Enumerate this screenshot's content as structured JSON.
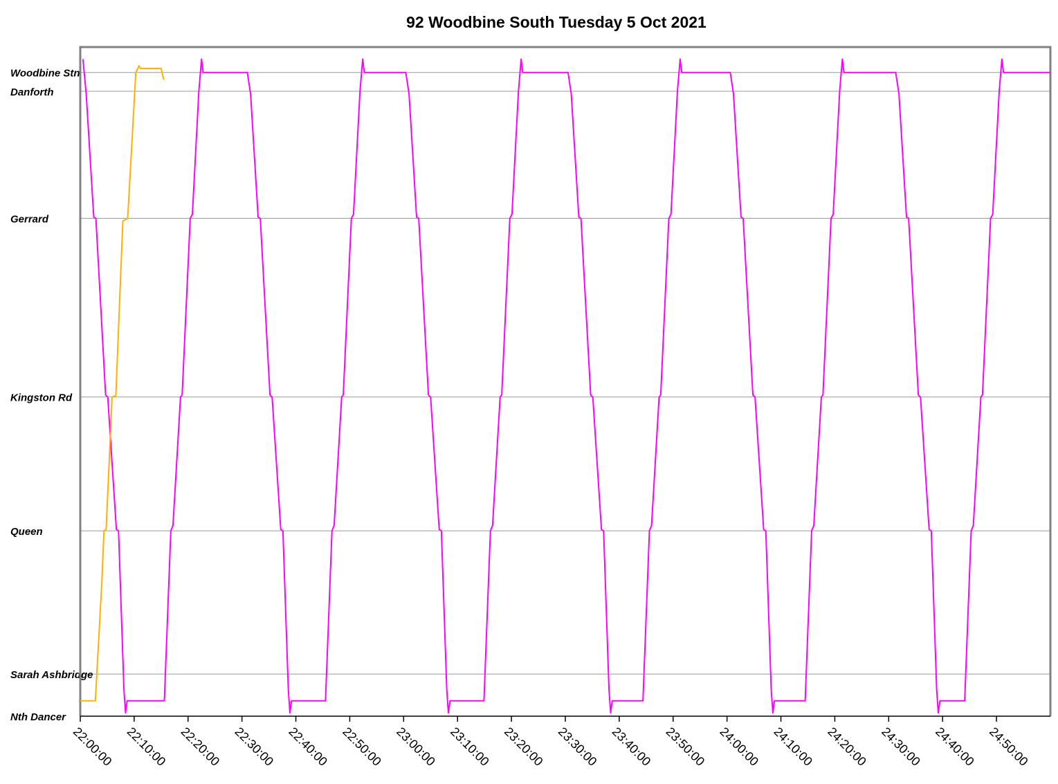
{
  "chart_data": {
    "type": "line",
    "title": "92 Woodbine South Tuesday 5 Oct 2021",
    "xlim": [
      1320,
      1500
    ],
    "ylim": [
      0,
      100
    ],
    "xticks": [
      {
        "value": 1320,
        "label": "22:00:00"
      },
      {
        "value": 1330,
        "label": "22:10:00"
      },
      {
        "value": 1340,
        "label": "22:20:00"
      },
      {
        "value": 1350,
        "label": "22:30:00"
      },
      {
        "value": 1360,
        "label": "22:40:00"
      },
      {
        "value": 1370,
        "label": "22:50:00"
      },
      {
        "value": 1380,
        "label": "23:00:00"
      },
      {
        "value": 1390,
        "label": "23:10:00"
      },
      {
        "value": 1400,
        "label": "23:20:00"
      },
      {
        "value": 1410,
        "label": "23:30:00"
      },
      {
        "value": 1420,
        "label": "23:40:00"
      },
      {
        "value": 1430,
        "label": "23:50:00"
      },
      {
        "value": 1440,
        "label": "24:00:00"
      },
      {
        "value": 1450,
        "label": "24:10:00"
      },
      {
        "value": 1460,
        "label": "24:20:00"
      },
      {
        "value": 1470,
        "label": "24:30:00"
      },
      {
        "value": 1480,
        "label": "24:40:00"
      },
      {
        "value": 1490,
        "label": "24:50:00"
      }
    ],
    "yticks": [
      {
        "value": 0,
        "label": "Nth Dancer"
      },
      {
        "value": 6.3,
        "label": "Sarah Ashbridge"
      },
      {
        "value": 27.7,
        "label": "Queen"
      },
      {
        "value": 47.7,
        "label": "Kingston Rd"
      },
      {
        "value": 74.4,
        "label": "Gerrard"
      },
      {
        "value": 93.4,
        "label": "Danforth"
      },
      {
        "value": 96.2,
        "label": "Woodbine Stn"
      }
    ],
    "grid": true,
    "series": [
      {
        "color": "#ff00ff",
        "x": [
          1320.5,
          1321.1,
          1322.5,
          1322.9,
          1324.7,
          1325.1,
          1326.7,
          1327.1,
          1328.1,
          1328.4,
          1328.7,
          1335.6,
          1336.8,
          1337.2,
          1338.6,
          1338.9,
          1340.4,
          1340.8,
          1342.0,
          1342.5,
          1342.8,
          1351.0,
          1351.6,
          1353.0,
          1353.4,
          1355.2,
          1355.6,
          1357.2,
          1357.6,
          1358.6,
          1358.9,
          1359.2,
          1365.5,
          1366.7,
          1367.1,
          1368.5,
          1368.8,
          1370.3,
          1370.7,
          1371.9,
          1372.4,
          1372.7,
          1380.4,
          1381.0,
          1382.4,
          1382.8,
          1384.6,
          1385.0,
          1386.6,
          1387.0,
          1388.0,
          1388.3,
          1388.6,
          1394.9,
          1396.1,
          1396.5,
          1397.9,
          1398.2,
          1399.7,
          1400.1,
          1401.3,
          1401.8,
          1402.1,
          1410.5,
          1411.1,
          1412.5,
          1412.9,
          1414.7,
          1415.1,
          1416.7,
          1417.1,
          1418.1,
          1418.4,
          1418.7,
          1424.4,
          1425.6,
          1426.0,
          1427.4,
          1427.7,
          1429.2,
          1429.6,
          1430.8,
          1431.3,
          1431.6,
          1440.6,
          1441.2,
          1442.6,
          1443.0,
          1444.8,
          1445.2,
          1446.8,
          1447.2,
          1448.2,
          1448.5,
          1448.8,
          1454.5,
          1455.7,
          1456.1,
          1457.5,
          1457.8,
          1459.3,
          1459.7,
          1460.9,
          1461.4,
          1461.7,
          1471.3,
          1471.9,
          1473.3,
          1473.7,
          1475.5,
          1475.9,
          1477.5,
          1477.9,
          1478.9,
          1479.2,
          1479.5,
          1484.1,
          1485.3,
          1485.7,
          1487.1,
          1487.4,
          1488.9,
          1489.3,
          1490.5,
          1491.0,
          1491.3,
          1500
        ],
        "values": [
          98.2,
          93,
          74.6,
          74.4,
          48,
          47.7,
          27.9,
          27.7,
          4,
          0.5,
          2.3,
          2.3,
          27.7,
          28.5,
          47.7,
          48,
          74.4,
          75,
          93.4,
          98.2,
          96.2,
          96.2,
          93,
          74.6,
          74.4,
          48,
          47.7,
          27.9,
          27.7,
          4,
          0.5,
          2.3,
          2.3,
          27.7,
          28.5,
          47.7,
          48,
          74.4,
          75,
          93.4,
          98.2,
          96.2,
          96.2,
          93,
          74.6,
          74.4,
          48,
          47.7,
          27.9,
          27.7,
          4,
          0.5,
          2.3,
          2.3,
          27.7,
          28.5,
          47.7,
          48,
          74.4,
          75,
          93.4,
          98.2,
          96.2,
          96.2,
          93,
          74.6,
          74.4,
          48,
          47.7,
          27.9,
          27.7,
          4,
          0.5,
          2.3,
          2.3,
          27.7,
          28.5,
          47.7,
          48,
          74.4,
          75,
          93.4,
          98.2,
          96.2,
          96.2,
          93,
          74.6,
          74.4,
          48,
          47.7,
          27.9,
          27.7,
          4,
          0.5,
          2.3,
          2.3,
          27.7,
          28.5,
          47.7,
          48,
          74.4,
          75,
          93.4,
          98.2,
          96.2,
          96.2,
          93,
          74.6,
          74.4,
          48,
          47.7,
          27.9,
          27.7,
          4,
          0.5,
          2.3,
          2.3,
          27.7,
          28.5,
          47.7,
          48,
          74.4,
          75,
          93.4,
          98.2,
          96.2,
          96.2
        ]
      },
      {
        "color": "#ffb000",
        "x": [
          1320,
          1322.8,
          1324.0,
          1324.4,
          1324.8,
          1325.9,
          1326.6,
          1327.9,
          1328.8,
          1330.3,
          1330.9,
          1331.2,
          1335.0,
          1335.5
        ],
        "values": [
          2.3,
          2.3,
          20,
          27.7,
          27.9,
          47.7,
          47.9,
          74.0,
          74.4,
          96.2,
          97.2,
          96.8,
          96.8,
          95.1
        ]
      }
    ]
  }
}
